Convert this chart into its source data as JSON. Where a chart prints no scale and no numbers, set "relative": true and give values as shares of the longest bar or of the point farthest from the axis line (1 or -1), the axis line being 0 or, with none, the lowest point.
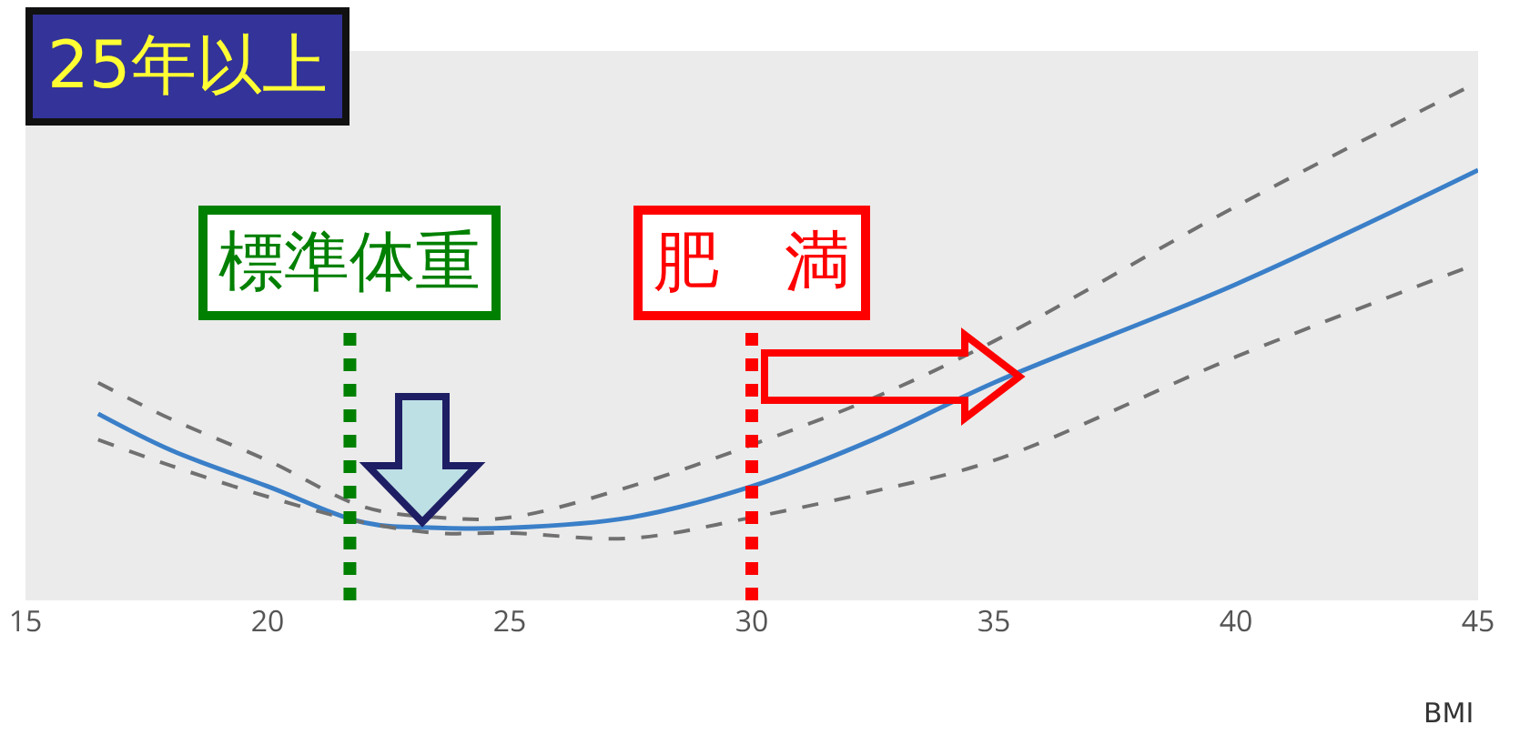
{
  "chart_data": {
    "type": "line",
    "title": "25年以上",
    "xlabel": "BMI",
    "relative": true,
    "x": [
      16.5,
      18,
      20,
      22,
      23.5,
      25,
      27.5,
      30,
      32.5,
      35,
      40,
      45
    ],
    "xlim": [
      15,
      45
    ],
    "xticks": [
      15,
      20,
      25,
      30,
      35,
      40,
      45
    ],
    "series": [
      {
        "color": "#3a7fc8",
        "line_style": "solid",
        "values": [
          0.36,
          0.29,
          0.22,
          0.15,
          0.14,
          0.14,
          0.16,
          0.22,
          0.31,
          0.42,
          0.61,
          0.83
        ]
      },
      {
        "color": "#707070",
        "line_style": "dashed",
        "values": [
          0.42,
          0.35,
          0.27,
          0.18,
          0.16,
          0.16,
          0.22,
          0.3,
          0.39,
          0.5,
          0.76,
          1
        ]
      },
      {
        "color": "#707070",
        "line_style": "dashed",
        "values": [
          0.31,
          0.26,
          0.2,
          0.15,
          0.13,
          0.13,
          0.12,
          0.16,
          0.21,
          0.27,
          0.47,
          0.65
        ]
      }
    ],
    "ref_lines": [
      {
        "axis": "x",
        "value": 21.7,
        "label": "標準体重",
        "color": "#008000",
        "line_style": "dotted"
      },
      {
        "axis": "x",
        "value": 30,
        "label": "肥　満",
        "color": "#ff0000",
        "line_style": "dotted"
      }
    ]
  }
}
